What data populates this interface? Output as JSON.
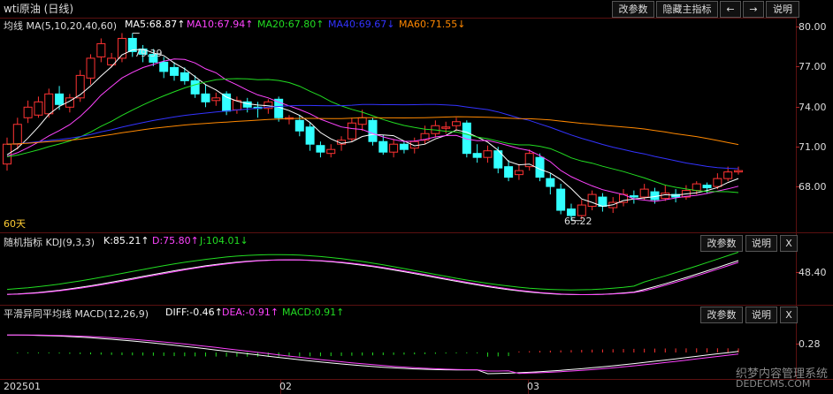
{
  "window": {
    "title": "wti原油 (日线)"
  },
  "toolbar": {
    "params_label": "改参数",
    "hide_main_label": "隐藏主指标",
    "prev_label": "←",
    "next_label": "→",
    "help_label": "说明"
  },
  "ma_panel": {
    "legend_prefix": "均线 MA(5,10,20,40,60)",
    "ma5": "MA5:68.87↑",
    "ma10": "MA10:67.94↑",
    "ma20": "MA20:67.80↑",
    "ma40": "MA40:69.67↓",
    "ma60": "MA60:71.55↓",
    "period_label": "60天",
    "high_label": "79.39",
    "low_label": "65.22",
    "y_ticks": [
      "80.00",
      "77.00",
      "74.00",
      "71.00",
      "68.00"
    ],
    "colors": {
      "ma5": "#ffffff",
      "ma10": "#ff44ff",
      "ma20": "#22dd22",
      "ma40": "#3333ff",
      "ma60": "#ff8800",
      "up": "#ff3333",
      "down": "#33ffff"
    }
  },
  "kdj_panel": {
    "legend_prefix": "随机指标 KDJ(9,3,3)",
    "k": "K:85.21↑",
    "d": "D:75.80↑",
    "j": "J:104.01↓",
    "params_label": "改参数",
    "help_label": "说明",
    "close_label": "X",
    "y_ticks": [
      "48.40"
    ]
  },
  "macd_panel": {
    "legend_prefix": "平滑异同平均线 MACD(12,26,9)",
    "diff": "DIFF:-0.46↑",
    "dea": "DEA:-0.91↑",
    "macd": "MACD:0.91↑",
    "params_label": "改参数",
    "help_label": "说明",
    "close_label": "X",
    "y_ticks": [
      "0.28"
    ]
  },
  "x_axis": {
    "labels": [
      "202501",
      "02",
      "03"
    ]
  },
  "watermark": {
    "line1": "织梦内容管理系统",
    "line2": "DEDECMS.COM"
  }
}
